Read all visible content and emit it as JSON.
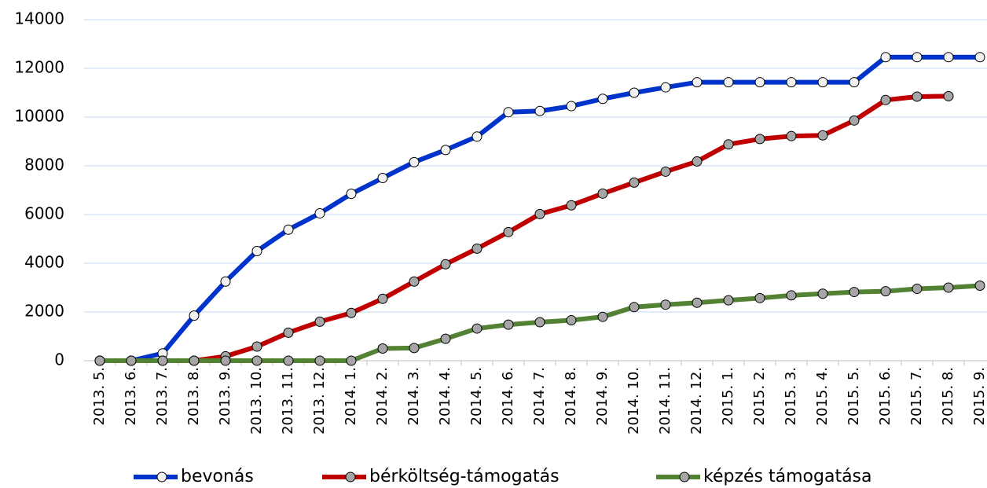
{
  "chart_data": {
    "type": "line",
    "categories": [
      "2013. 5.",
      "2013. 6.",
      "2013. 7.",
      "2013. 8.",
      "2013. 9.",
      "2013. 10.",
      "2013. 11.",
      "2013. 12.",
      "2014. 1.",
      "2014. 2.",
      "2014. 3.",
      "2014. 4.",
      "2014. 5.",
      "2014. 6.",
      "2014. 7.",
      "2014. 8.",
      "2014. 9.",
      "2014. 10.",
      "2014. 11.",
      "2014. 12.",
      "2015. 1.",
      "2015. 2.",
      "2015. 3.",
      "2015. 4.",
      "2015. 5.",
      "2015. 6.",
      "2015. 7.",
      "2015. 8.",
      "2015. 9."
    ],
    "series": [
      {
        "name": "bevonás",
        "color": "#0033cc",
        "marker_color": "#f2f2f2",
        "values": [
          0,
          0,
          300,
          1850,
          3250,
          4500,
          5380,
          6050,
          6850,
          7500,
          8150,
          8650,
          9200,
          10200,
          10250,
          10450,
          10750,
          11000,
          11220,
          11430,
          11430,
          11430,
          11430,
          11430,
          11430,
          12460,
          12460,
          12460,
          12460
        ]
      },
      {
        "name": "bérköltség-támogatás",
        "color": "#c00000",
        "marker_color": "#a6a6a6",
        "values": [
          0,
          0,
          0,
          0,
          180,
          580,
          1150,
          1600,
          1960,
          2540,
          3250,
          3960,
          4600,
          5280,
          6020,
          6380,
          6860,
          7310,
          7760,
          8180,
          8880,
          9100,
          9220,
          9250,
          9860,
          10700,
          10840,
          10860,
          null
        ]
      },
      {
        "name": "képzés támogatása",
        "color": "#548235",
        "marker_color": "#a6a6a6",
        "values": [
          0,
          0,
          0,
          0,
          0,
          0,
          0,
          0,
          0,
          500,
          520,
          900,
          1320,
          1480,
          1580,
          1660,
          1800,
          2200,
          2300,
          2380,
          2480,
          2570,
          2680,
          2750,
          2820,
          2850,
          2950,
          3000,
          3080
        ]
      }
    ],
    "ylim": [
      0,
      14000
    ],
    "yticks": [
      0,
      2000,
      4000,
      6000,
      8000,
      10000,
      12000,
      14000
    ],
    "grid": true,
    "legend": "bottom"
  }
}
